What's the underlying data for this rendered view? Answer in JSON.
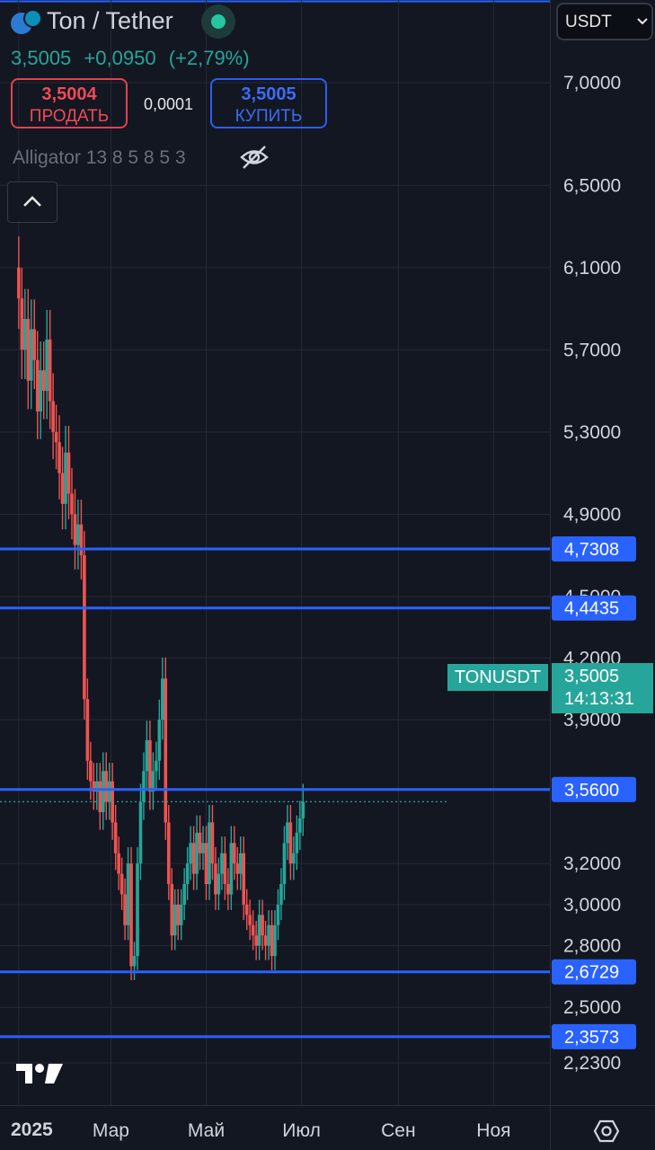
{
  "header": {
    "pair_title": "Ton / Tether",
    "last_price": "3,5005",
    "change_abs": "+0,0950",
    "change_pct": "(+2,79%)",
    "sell_price": "3,5004",
    "sell_label": "ПРОДАТЬ",
    "spread": "0,0001",
    "buy_price": "3,5005",
    "buy_label": "КУПИТЬ",
    "indicator": "Alligator 13 8 5 8 5 3",
    "currency": "USDT"
  },
  "current_price_tag": {
    "symbol": "TONUSDT",
    "price": "3,5005",
    "countdown": "14:13:31"
  },
  "footer": {
    "year_label": "2025"
  },
  "colors": {
    "background": "#131722",
    "up": "#26a69a",
    "down": "#ef5350",
    "level_line": "#2962ff",
    "grid": "#262a36",
    "axis_text": "#d1d4dc"
  },
  "icons": [
    "ton-logo-icon",
    "eye-off-icon",
    "chevron-up-icon",
    "chevron-down-icon",
    "tradingview-logo-icon",
    "settings-icon"
  ],
  "chart_data": {
    "type": "candlestick",
    "title": "Ton / Tether",
    "ylim": [
      2.07,
      7.35
    ],
    "y_ticks": [
      {
        "value": 7.0,
        "label": "7,0000"
      },
      {
        "value": 6.5,
        "label": "6,5000"
      },
      {
        "value": 6.1,
        "label": "6,1000"
      },
      {
        "value": 5.7,
        "label": "5,7000"
      },
      {
        "value": 5.3,
        "label": "5,3000"
      },
      {
        "value": 4.9,
        "label": "4,9000"
      },
      {
        "value": 4.5,
        "label": "4,5000"
      },
      {
        "value": 4.2,
        "label": "4,2000"
      },
      {
        "value": 3.9,
        "label": "3,9000"
      },
      {
        "value": 3.2,
        "label": "3,2000"
      },
      {
        "value": 3.0,
        "label": "3,0000"
      },
      {
        "value": 2.8,
        "label": "2,8000"
      },
      {
        "value": 2.5,
        "label": "2,5000"
      },
      {
        "value": 2.23,
        "label": "2,2300"
      }
    ],
    "x_ticks": [
      {
        "value": "2025-03-01",
        "label": "Мар"
      },
      {
        "value": "2025-05-01",
        "label": "Май"
      },
      {
        "value": "2025-07-01",
        "label": "Июл"
      },
      {
        "value": "2025-09-01",
        "label": "Сен"
      },
      {
        "value": "2025-11-01",
        "label": "Ноя"
      }
    ],
    "x_range": [
      "2024-12-20",
      "2025-12-07"
    ],
    "horizontal_levels": [
      {
        "value": 4.7308,
        "label": "4,7308"
      },
      {
        "value": 4.4435,
        "label": "4,4435"
      },
      {
        "value": 3.56,
        "label": "3,5600"
      },
      {
        "value": 2.6729,
        "label": "2,6729"
      },
      {
        "value": 2.3573,
        "label": "2,3573"
      }
    ],
    "current_price": {
      "value": 3.5005,
      "label": "3,5005"
    },
    "series": [
      {
        "name": "TONUSDT",
        "x_start": "2025-01-01",
        "x_step_days": 2,
        "close": [
          5.95,
          5.7,
          5.85,
          5.55,
          5.8,
          5.65,
          5.4,
          5.6,
          5.5,
          5.75,
          5.45,
          5.3,
          5.25,
          5.1,
          4.95,
          5.2,
          5.0,
          4.9,
          4.75,
          4.85,
          4.7,
          4.0,
          3.7,
          3.6,
          3.55,
          3.6,
          3.45,
          3.65,
          3.5,
          3.6,
          3.4,
          3.25,
          3.15,
          3.05,
          2.9,
          3.2,
          2.7,
          2.75,
          3.2,
          3.5,
          3.65,
          3.8,
          3.55,
          3.65,
          3.7,
          3.9,
          4.1,
          3.4,
          3.1,
          2.85,
          3.0,
          2.9,
          3.0,
          3.1,
          3.2,
          3.3,
          3.15,
          3.35,
          3.25,
          3.3,
          3.1,
          3.4,
          3.2,
          3.05,
          3.15,
          3.25,
          3.1,
          3.05,
          3.3,
          3.2,
          3.15,
          3.25,
          3.0,
          2.95,
          2.9,
          2.85,
          2.8,
          2.95,
          2.85,
          2.8,
          2.9,
          2.75,
          2.9,
          3.0,
          3.1,
          3.3,
          3.4,
          3.2,
          3.25,
          3.35,
          3.42,
          3.5
        ]
      }
    ]
  }
}
